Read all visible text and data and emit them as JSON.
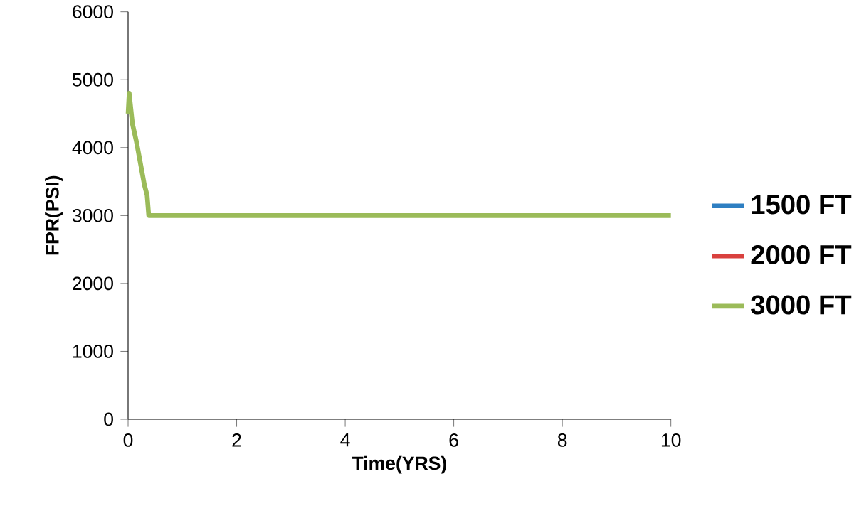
{
  "chart_data": {
    "type": "line",
    "xlabel": "Time(YRS)",
    "ylabel": "FPR(PSI)",
    "xlim": [
      0,
      10
    ],
    "ylim": [
      0,
      6000
    ],
    "xticks": [
      0,
      2,
      4,
      6,
      8,
      10
    ],
    "yticks": [
      0,
      1000,
      2000,
      3000,
      4000,
      5000,
      6000
    ],
    "grid": false,
    "legend": "right",
    "marker": "none",
    "line_style": "solid",
    "x": [
      0,
      0.02,
      0.08,
      0.15,
      0.22,
      0.3,
      0.35,
      0.38,
      0.4,
      10
    ],
    "series": [
      {
        "name": "1500 FT",
        "color": "#2e7fc2",
        "values": [
          null,
          null,
          null,
          null,
          null,
          null,
          null,
          null,
          null,
          null
        ]
      },
      {
        "name": "2000 FT",
        "color": "#d9413e",
        "values": [
          null,
          null,
          null,
          null,
          null,
          null,
          null,
          null,
          null,
          null
        ]
      },
      {
        "name": "3000 FT",
        "color": "#9bbb59",
        "values": [
          4500,
          4800,
          4350,
          4100,
          3800,
          3450,
          3300,
          3000,
          3000,
          3000
        ]
      }
    ]
  }
}
